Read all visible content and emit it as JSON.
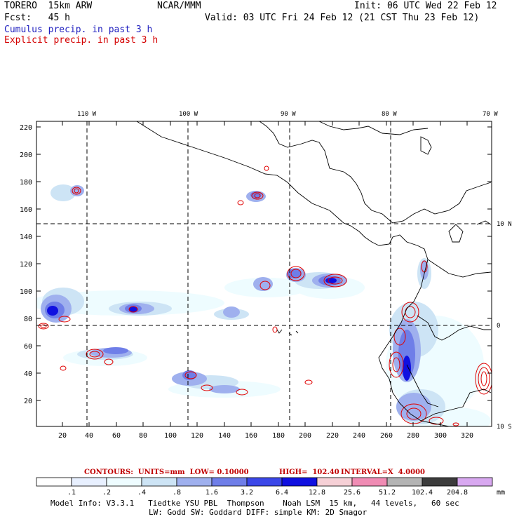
{
  "header": {
    "model": "TORERO  15km ARW",
    "org": "NCAR/MMM",
    "init": "Init: 06 UTC Wed 22 Feb 12",
    "fcst": "Fcst:   45 h",
    "valid": "Valid: 03 UTC Fri 24 Feb 12 (21 CST Thu 23 Feb 12)",
    "field1": "Cumulus precip. in past 3 h",
    "field2": "Explicit precip. in past 3 h"
  },
  "map": {
    "lon_labels": [
      "110 W",
      "100 W",
      "90 W",
      "80 W",
      "70 W"
    ],
    "lat_labels": [
      "10 N",
      "0",
      "10 S"
    ],
    "y_ticks": [
      "220",
      "200",
      "180",
      "160",
      "140",
      "120",
      "100",
      "80",
      "60",
      "40",
      "20"
    ],
    "x_ticks": [
      "20",
      "40",
      "60",
      "80",
      "100",
      "120",
      "140",
      "160",
      "180",
      "200",
      "220",
      "240",
      "260",
      "280",
      "300",
      "320"
    ]
  },
  "contours": {
    "units_label": "CONTOURS:  UNITS=mm  LOW= 0.10000",
    "high_label": "HIGH=  102.40",
    "interval_label": "INTERVAL=X  4.0000"
  },
  "colorbar": {
    "labels": [
      ".1",
      ".2",
      ".4",
      ".8",
      "1.6",
      "3.2",
      "6.4",
      "12.8",
      "25.6",
      "51.2",
      "102.4",
      "204.8"
    ],
    "unit": "mm",
    "colors": [
      "#ffffff",
      "#ffffff",
      "#e8f0ff",
      "#eefcff",
      "#cde4f5",
      "#9fb0ee",
      "#6f7ee8",
      "#3b47e8",
      "#1010e0",
      "#f6d0d6",
      "#f08cb4",
      "#b4b4b4",
      "#3c3c3c",
      "#d8a8f0"
    ]
  },
  "footer": {
    "line1": "Model Info: V3.3.1   Tiedtke YSU PBL  Thompson    Noah LSM  15 km,   44 levels,   60 sec",
    "line2": "LW: Godd SW: Goddard DIFF: simple KM: 2D Smagor"
  }
}
